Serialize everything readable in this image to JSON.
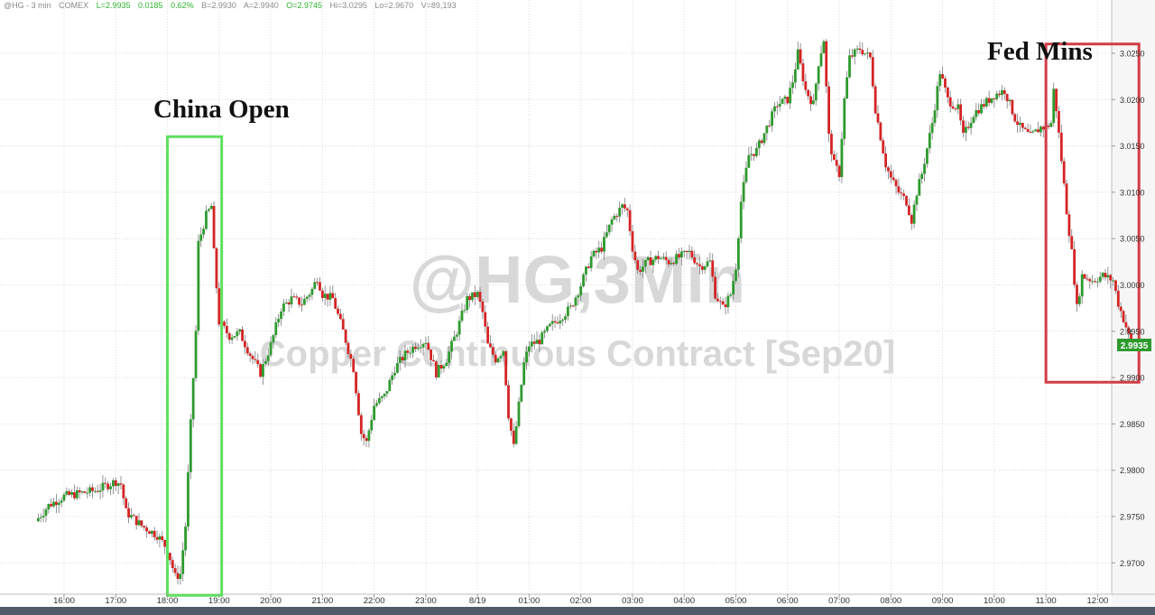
{
  "header": {
    "symbol": "@HG - 3 min",
    "exchange": "COMEX",
    "last": "L=2.9935",
    "change": "0.0185",
    "change_pct": "0.62%",
    "bid": "B=2.9930",
    "ask": "A=2.9940",
    "open": "O=2.9745",
    "high": "Hi=3.0295",
    "low": "Lo=2.9670",
    "volume": "V=89,193"
  },
  "watermark": {
    "line1": "@HG,3Min",
    "line2": "Copper Continuous Contract [Sep20]"
  },
  "annotations": {
    "china_open": "China Open",
    "fed_mins": "Fed Mins"
  },
  "price_badge": "2.9935",
  "colors": {
    "up": "#2e9a2e",
    "down": "#d42424",
    "china_box": "#5ee05e",
    "fed_box": "#d23c46",
    "grid": "#dcdcdc",
    "badge": "#2e9a2e"
  },
  "chart_data": {
    "type": "candlestick",
    "interval": "3 min",
    "ylim": [
      2.9665,
      3.0295
    ],
    "y_ticks": [
      "3.0250",
      "3.0200",
      "3.0150",
      "3.0100",
      "3.0050",
      "3.0000",
      "2.9950",
      "2.9900",
      "2.9850",
      "2.9800",
      "2.9750",
      "2.9700"
    ],
    "x_ticks": [
      "16:00",
      "17:00",
      "18:00",
      "19:00",
      "20:00",
      "21:00",
      "22:00",
      "23:00",
      "8/19",
      "01:00",
      "02:00",
      "03:00",
      "04:00",
      "05:00",
      "06:00",
      "07:00",
      "08:00",
      "09:00",
      "10:00",
      "11:00",
      "12:00"
    ],
    "x_tick_hours": [
      16,
      17,
      18,
      19,
      20,
      21,
      22,
      23,
      24,
      25,
      26,
      27,
      28,
      29,
      30,
      31,
      32,
      33,
      34,
      35,
      36
    ],
    "x_range_hours": [
      15.45,
      36.8
    ],
    "highlight_regions": [
      {
        "label": "China Open",
        "x_hours": [
          18.0,
          19.05
        ],
        "y": [
          2.9665,
          3.016
        ]
      },
      {
        "label": "Fed Mins",
        "x_hours": [
          35.0,
          36.8
        ],
        "y": [
          2.9895,
          3.026
        ]
      }
    ],
    "close_path": [
      [
        15.45,
        2.9745
      ],
      [
        15.7,
        2.9762
      ],
      [
        16.0,
        2.9772
      ],
      [
        16.3,
        2.9775
      ],
      [
        16.6,
        2.9778
      ],
      [
        17.0,
        2.9788
      ],
      [
        17.1,
        2.9785
      ],
      [
        17.2,
        2.9755
      ],
      [
        17.5,
        2.974
      ],
      [
        17.8,
        2.973
      ],
      [
        18.0,
        2.9715
      ],
      [
        18.15,
        2.9685
      ],
      [
        18.25,
        2.9688
      ],
      [
        18.35,
        2.974
      ],
      [
        18.45,
        2.985
      ],
      [
        18.55,
        2.995
      ],
      [
        18.6,
        3.0045
      ],
      [
        18.75,
        3.0075
      ],
      [
        18.85,
        3.0085
      ],
      [
        18.9,
        3.0035
      ],
      [
        19.0,
        2.996
      ],
      [
        19.2,
        2.9945
      ],
      [
        19.4,
        2.9948
      ],
      [
        19.6,
        2.9925
      ],
      [
        19.8,
        2.9905
      ],
      [
        20.0,
        2.9935
      ],
      [
        20.2,
        2.9975
      ],
      [
        20.4,
        2.9985
      ],
      [
        20.6,
        2.998
      ],
      [
        20.8,
        2.9995
      ],
      [
        20.9,
        3.0008
      ],
      [
        21.0,
        2.999
      ],
      [
        21.2,
        2.9985
      ],
      [
        21.4,
        2.995
      ],
      [
        21.6,
        2.991
      ],
      [
        21.75,
        2.984
      ],
      [
        21.85,
        2.983
      ],
      [
        22.0,
        2.987
      ],
      [
        22.2,
        2.988
      ],
      [
        22.4,
        2.991
      ],
      [
        22.6,
        2.9925
      ],
      [
        22.8,
        2.9935
      ],
      [
        23.0,
        2.994
      ],
      [
        23.2,
        2.9905
      ],
      [
        23.4,
        2.992
      ],
      [
        23.6,
        2.995
      ],
      [
        23.8,
        2.9985
      ],
      [
        24.0,
        2.999
      ],
      [
        24.1,
        2.997
      ],
      [
        24.2,
        2.9935
      ],
      [
        24.35,
        2.992
      ],
      [
        24.5,
        2.993
      ],
      [
        24.6,
        2.986
      ],
      [
        24.7,
        2.9825
      ],
      [
        24.8,
        2.987
      ],
      [
        24.9,
        2.9915
      ],
      [
        25.0,
        2.9935
      ],
      [
        25.2,
        2.994
      ],
      [
        25.4,
        2.9955
      ],
      [
        25.6,
        2.9965
      ],
      [
        25.8,
        2.9975
      ],
      [
        26.0,
        3.0
      ],
      [
        26.2,
        3.003
      ],
      [
        26.4,
        3.004
      ],
      [
        26.6,
        3.007
      ],
      [
        26.8,
        3.0085
      ],
      [
        26.9,
        3.008
      ],
      [
        27.0,
        3.004
      ],
      [
        27.1,
        3.0015
      ],
      [
        27.3,
        3.0025
      ],
      [
        27.5,
        3.003
      ],
      [
        27.7,
        3.0025
      ],
      [
        27.9,
        3.003
      ],
      [
        28.1,
        3.0035
      ],
      [
        28.3,
        3.002
      ],
      [
        28.5,
        3.0025
      ],
      [
        28.6,
        2.999
      ],
      [
        28.75,
        2.9975
      ],
      [
        28.9,
        2.999
      ],
      [
        29.0,
        3.002
      ],
      [
        29.1,
        3.009
      ],
      [
        29.25,
        3.014
      ],
      [
        29.4,
        3.0145
      ],
      [
        29.6,
        3.017
      ],
      [
        29.8,
        3.0195
      ],
      [
        30.0,
        3.02
      ],
      [
        30.1,
        3.022
      ],
      [
        30.2,
        3.025
      ],
      [
        30.35,
        3.021
      ],
      [
        30.5,
        3.0195
      ],
      [
        30.6,
        3.024
      ],
      [
        30.7,
        3.0265
      ],
      [
        30.8,
        3.016
      ],
      [
        30.9,
        3.013
      ],
      [
        31.0,
        3.012
      ],
      [
        31.1,
        3.02
      ],
      [
        31.2,
        3.0245
      ],
      [
        31.4,
        3.0255
      ],
      [
        31.6,
        3.0245
      ],
      [
        31.7,
        3.019
      ],
      [
        31.8,
        3.016
      ],
      [
        31.9,
        3.013
      ],
      [
        32.0,
        3.0115
      ],
      [
        32.15,
        3.01
      ],
      [
        32.3,
        3.009
      ],
      [
        32.4,
        3.007
      ],
      [
        32.5,
        3.01
      ],
      [
        32.6,
        3.012
      ],
      [
        32.8,
        3.0175
      ],
      [
        32.95,
        3.023
      ],
      [
        33.1,
        3.02
      ],
      [
        33.3,
        3.019
      ],
      [
        33.4,
        3.016
      ],
      [
        33.6,
        3.0185
      ],
      [
        33.8,
        3.0195
      ],
      [
        34.0,
        3.0205
      ],
      [
        34.2,
        3.021
      ],
      [
        34.4,
        3.018
      ],
      [
        34.5,
        3.017
      ],
      [
        34.7,
        3.016
      ],
      [
        34.9,
        3.017
      ],
      [
        35.0,
        3.017
      ],
      [
        35.1,
        3.0175
      ],
      [
        35.15,
        3.021
      ],
      [
        35.2,
        3.019
      ],
      [
        35.3,
        3.0135
      ],
      [
        35.4,
        3.008
      ],
      [
        35.5,
        3.0035
      ],
      [
        35.6,
        2.9975
      ],
      [
        35.7,
        3.001
      ],
      [
        35.9,
        3.0005
      ],
      [
        36.1,
        3.001
      ],
      [
        36.3,
        3.0005
      ],
      [
        36.4,
        2.998
      ],
      [
        36.55,
        2.9955
      ],
      [
        36.65,
        2.9935
      ]
    ]
  }
}
